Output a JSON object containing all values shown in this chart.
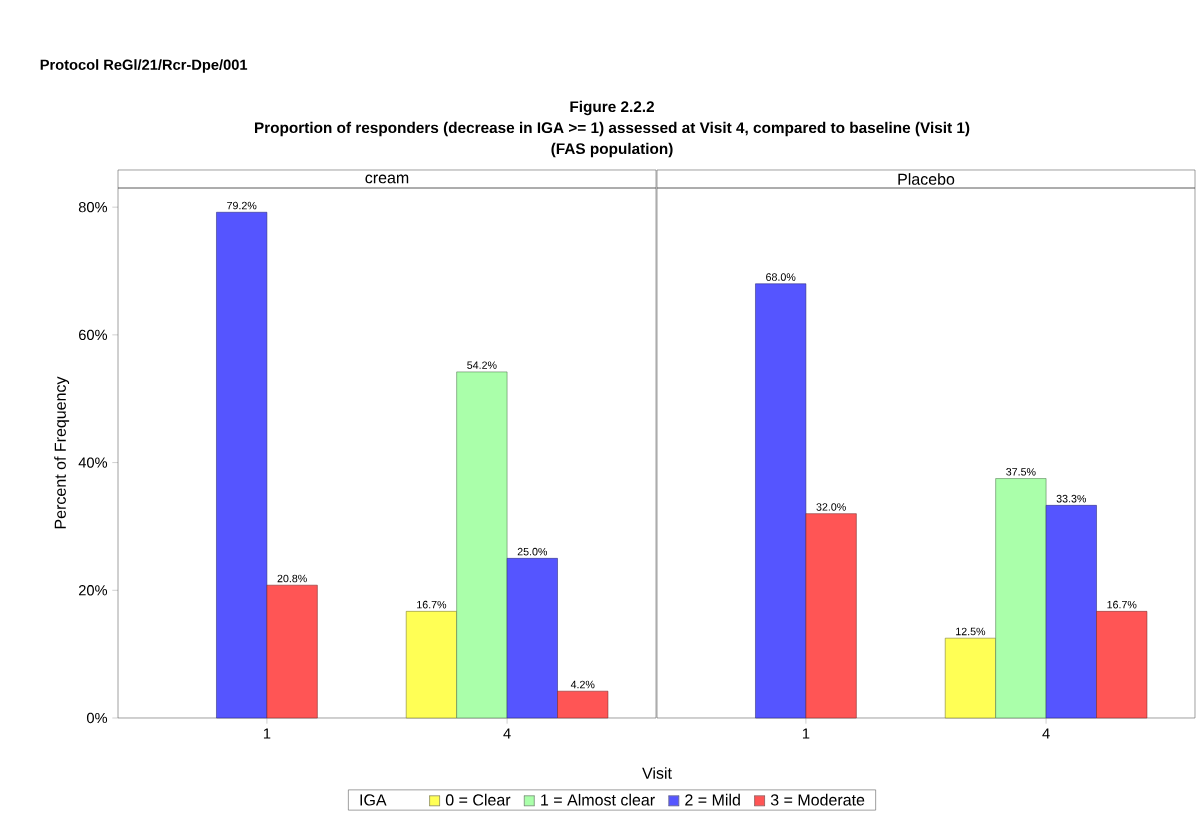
{
  "chart_data": [
    {
      "type": "bar",
      "title": "cream",
      "ylabel": "Percent of Frequency",
      "xlabel": "Visit",
      "legend_title": "IGA",
      "legend": "bottom",
      "annotations": [
        "Protocol ReGl/21/Rcr-Dpe/001",
        "Figure 2.2.2",
        "Proportion of responders (decrease in IGA >= 1) assessed at Visit 4, compared to baseline (Visit 1)",
        "(FAS population)"
      ],
      "categories": [
        "1",
        "4"
      ],
      "ylim": [
        0,
        83
      ],
      "yticks": [
        {
          "value": 0,
          "label": "0%"
        },
        {
          "value": 20,
          "label": "20%"
        },
        {
          "value": 40,
          "label": "40%"
        },
        {
          "value": 60,
          "label": "60%"
        },
        {
          "value": 80,
          "label": "80%"
        }
      ],
      "series": [
        {
          "name": "0 = Clear",
          "color": "#ffff55",
          "values": [
            null,
            16.7
          ],
          "value_labels": [
            null,
            "16.7%"
          ]
        },
        {
          "name": "1 = Almost clear",
          "color": "#aaffaa",
          "values": [
            null,
            54.2
          ],
          "value_labels": [
            null,
            "54.2%"
          ]
        },
        {
          "name": "2 = Mild",
          "color": "#5555ff",
          "values": [
            79.2,
            25.0
          ],
          "value_labels": [
            "79.2%",
            "25.0%"
          ]
        },
        {
          "name": "3 = Moderate",
          "color": "#ff5555",
          "values": [
            20.8,
            4.2
          ],
          "value_labels": [
            "20.8%",
            "4.2%"
          ]
        }
      ]
    },
    {
      "type": "bar",
      "title": "Placebo",
      "tick_labels": "x",
      "categories": [
        "1",
        "4"
      ],
      "ylim": [
        0,
        83
      ],
      "series": [
        {
          "color": "#ffff55",
          "values": [
            null,
            12.5
          ],
          "value_labels": [
            null,
            "12.5%"
          ]
        },
        {
          "color": "#aaffaa",
          "values": [
            null,
            37.5
          ],
          "value_labels": [
            null,
            "37.5%"
          ]
        },
        {
          "color": "#5555ff",
          "values": [
            68.0,
            33.3
          ],
          "value_labels": [
            "68.0%",
            "33.3%"
          ]
        },
        {
          "color": "#ff5555",
          "values": [
            32.0,
            16.7
          ],
          "value_labels": [
            "32.0%",
            "16.7%"
          ]
        }
      ]
    }
  ]
}
